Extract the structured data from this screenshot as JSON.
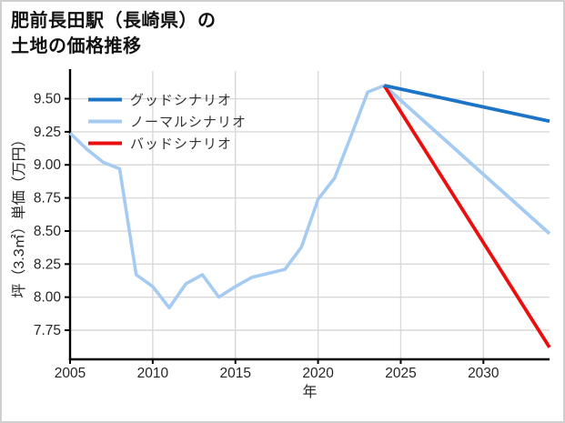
{
  "header": {
    "title_line1": "肥前長田駅（長崎県）の",
    "title_line2": "土地の価格推移"
  },
  "chart_data": {
    "type": "line",
    "title": "肥前長田駅（長崎県）の土地の価格推移",
    "xlabel": "年",
    "ylabel": "坪（3.3㎡）単価（万円）",
    "xlim": [
      2005,
      2034
    ],
    "ylim": [
      7.53,
      9.71
    ],
    "x_ticks": [
      2005,
      2010,
      2015,
      2020,
      2025,
      2030
    ],
    "y_ticks": [
      7.75,
      8.0,
      8.25,
      8.5,
      8.75,
      9.0,
      9.25,
      9.5
    ],
    "grid": true,
    "legend_position": "upper-left",
    "colors": {
      "good": "#1b74c5",
      "normal": "#a6cbf2",
      "bad": "#ea0f0f",
      "gridline": "#d9d9d9",
      "spine": "#000000",
      "tick_text": "#262626",
      "legend_text": "#333333"
    },
    "history": {
      "series_key": "normal",
      "color": "#a6cbf2",
      "years": [
        2005,
        2006,
        2007,
        2008,
        2009,
        2010,
        2011,
        2012,
        2013,
        2014,
        2015,
        2016,
        2017,
        2018,
        2019,
        2020,
        2021,
        2022,
        2023,
        2024
      ],
      "values": [
        9.24,
        9.12,
        9.02,
        8.97,
        8.17,
        8.08,
        7.92,
        8.1,
        8.17,
        8.0,
        8.08,
        8.15,
        8.18,
        8.21,
        8.38,
        8.74,
        8.9,
        9.22,
        9.55,
        9.6
      ]
    },
    "scenarios": [
      {
        "key": "good",
        "label": "グッドシナリオ",
        "color": "#1b74c5",
        "x": [
          2024,
          2034
        ],
        "values": [
          9.6,
          9.33
        ]
      },
      {
        "key": "normal",
        "label": "ノーマルシナリオ",
        "color": "#a6cbf2",
        "x": [
          2024,
          2034
        ],
        "values": [
          9.6,
          8.48
        ]
      },
      {
        "key": "bad",
        "label": "バッドシナリオ",
        "color": "#ea0f0f",
        "x": [
          2024,
          2034
        ],
        "values": [
          9.6,
          7.62
        ]
      }
    ]
  }
}
